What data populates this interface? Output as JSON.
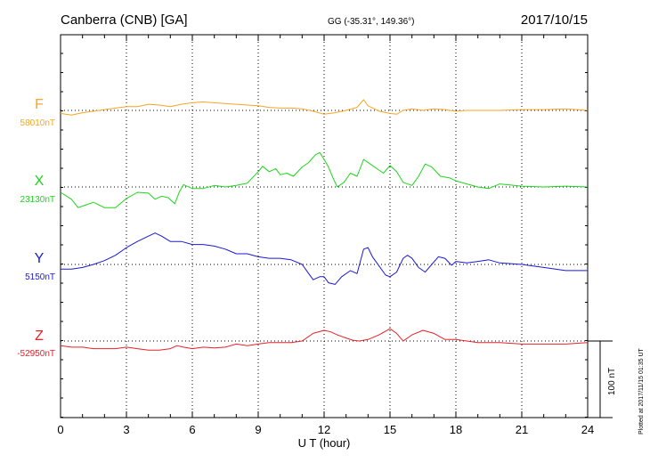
{
  "header": {
    "station": "Canberra (CNB)  [GA]",
    "coords": "GG (-35.31°, 149.36°)",
    "date": "2017/10/15"
  },
  "scale_label": "100 nT",
  "plotted_note": "Plotted at 2017/11/15 01:35 UT",
  "chart_data": {
    "type": "line",
    "xlabel": "U T (hour)",
    "xlim": [
      0,
      24
    ],
    "xticks": [
      "0",
      "3",
      "6",
      "9",
      "12",
      "15",
      "18",
      "21",
      "24"
    ],
    "scale_bar_nT": 100,
    "grid": "dotted vertical at each 3 h, dotted baseline per component",
    "series": [
      {
        "name": "F",
        "baseline_label": "58010nT",
        "color": "#f5a623",
        "units": "nT offset from baseline",
        "points": [
          [
            0,
            -4
          ],
          [
            0.5,
            -6
          ],
          [
            1,
            -3
          ],
          [
            1.5,
            -1
          ],
          [
            2,
            1
          ],
          [
            2.5,
            3
          ],
          [
            3,
            5
          ],
          [
            3.5,
            5
          ],
          [
            4,
            8
          ],
          [
            4.5,
            7
          ],
          [
            5,
            5
          ],
          [
            5.5,
            8
          ],
          [
            6,
            10
          ],
          [
            6.5,
            11
          ],
          [
            7,
            10
          ],
          [
            7.5,
            9
          ],
          [
            8,
            8
          ],
          [
            8.5,
            7
          ],
          [
            9,
            6
          ],
          [
            9.5,
            4
          ],
          [
            10,
            3
          ],
          [
            10.5,
            3
          ],
          [
            11,
            2
          ],
          [
            11.5,
            -1
          ],
          [
            12,
            -5
          ],
          [
            12.5,
            -3
          ],
          [
            13,
            0
          ],
          [
            13.5,
            4
          ],
          [
            13.8,
            14
          ],
          [
            14,
            6
          ],
          [
            14.3,
            2
          ],
          [
            14.5,
            -1
          ],
          [
            15,
            -4
          ],
          [
            15.3,
            -5
          ],
          [
            15.6,
            0
          ],
          [
            16,
            2
          ],
          [
            16.5,
            0
          ],
          [
            17,
            2
          ],
          [
            17.5,
            1
          ],
          [
            18,
            -1
          ],
          [
            18.5,
            0
          ],
          [
            19,
            0
          ],
          [
            19.5,
            0
          ],
          [
            20,
            0
          ],
          [
            21,
            1
          ],
          [
            22,
            1
          ],
          [
            23,
            2
          ],
          [
            24,
            0
          ]
        ]
      },
      {
        "name": "X",
        "baseline_label": "23130nT",
        "color": "#1bd51b",
        "units": "nT offset from baseline",
        "points": [
          [
            0,
            -7
          ],
          [
            0.5,
            -16
          ],
          [
            0.8,
            -27
          ],
          [
            1.1,
            -24
          ],
          [
            1.5,
            -20
          ],
          [
            2,
            -27
          ],
          [
            2.5,
            -27
          ],
          [
            3,
            -15
          ],
          [
            3.5,
            -7
          ],
          [
            4,
            -8
          ],
          [
            4.3,
            -16
          ],
          [
            4.6,
            -12
          ],
          [
            4.9,
            -14
          ],
          [
            5.2,
            -22
          ],
          [
            5.4,
            -7
          ],
          [
            5.6,
            3
          ],
          [
            6,
            -2
          ],
          [
            6.5,
            -2
          ],
          [
            7,
            2
          ],
          [
            7.5,
            0
          ],
          [
            8,
            2
          ],
          [
            8.5,
            5
          ],
          [
            9,
            20
          ],
          [
            9.2,
            27
          ],
          [
            9.5,
            20
          ],
          [
            9.8,
            24
          ],
          [
            10,
            16
          ],
          [
            10.3,
            18
          ],
          [
            10.6,
            14
          ],
          [
            11,
            26
          ],
          [
            11.3,
            32
          ],
          [
            11.6,
            42
          ],
          [
            11.8,
            45
          ],
          [
            12,
            36
          ],
          [
            12.2,
            26
          ],
          [
            12.4,
            12
          ],
          [
            12.6,
            0
          ],
          [
            12.9,
            6
          ],
          [
            13.2,
            18
          ],
          [
            13.5,
            14
          ],
          [
            13.8,
            36
          ],
          [
            14.1,
            30
          ],
          [
            14.4,
            24
          ],
          [
            14.7,
            18
          ],
          [
            15,
            28
          ],
          [
            15.3,
            20
          ],
          [
            15.6,
            6
          ],
          [
            16,
            2
          ],
          [
            16.3,
            14
          ],
          [
            16.6,
            30
          ],
          [
            16.9,
            26
          ],
          [
            17.3,
            14
          ],
          [
            17.7,
            12
          ],
          [
            18,
            8
          ],
          [
            18.5,
            4
          ],
          [
            19,
            0
          ],
          [
            19.5,
            -2
          ],
          [
            20,
            4
          ],
          [
            21,
            1
          ],
          [
            22,
            0
          ],
          [
            23,
            1
          ],
          [
            24,
            0
          ]
        ]
      },
      {
        "name": "Y",
        "baseline_label": "5150nT",
        "color": "#1a1ad6",
        "units": "nT offset from baseline",
        "points": [
          [
            0,
            -6
          ],
          [
            0.5,
            -6
          ],
          [
            1,
            -4
          ],
          [
            1.5,
            0
          ],
          [
            2,
            5
          ],
          [
            2.5,
            12
          ],
          [
            3,
            22
          ],
          [
            3.5,
            30
          ],
          [
            4,
            37
          ],
          [
            4.3,
            41
          ],
          [
            4.6,
            37
          ],
          [
            5,
            30
          ],
          [
            5.5,
            30
          ],
          [
            6,
            26
          ],
          [
            6.5,
            26
          ],
          [
            7,
            24
          ],
          [
            7.5,
            20
          ],
          [
            8,
            14
          ],
          [
            8.5,
            14
          ],
          [
            9,
            10
          ],
          [
            9.5,
            8
          ],
          [
            10,
            8
          ],
          [
            10.5,
            6
          ],
          [
            11,
            0
          ],
          [
            11.2,
            -8
          ],
          [
            11.5,
            -20
          ],
          [
            11.8,
            -16
          ],
          [
            12,
            -16
          ],
          [
            12.2,
            -24
          ],
          [
            12.5,
            -26
          ],
          [
            12.8,
            -16
          ],
          [
            13.2,
            -8
          ],
          [
            13.5,
            -12
          ],
          [
            13.8,
            20
          ],
          [
            14,
            22
          ],
          [
            14.2,
            10
          ],
          [
            14.5,
            -2
          ],
          [
            14.8,
            -14
          ],
          [
            15,
            -16
          ],
          [
            15.3,
            -10
          ],
          [
            15.6,
            8
          ],
          [
            15.8,
            12
          ],
          [
            16,
            8
          ],
          [
            16.3,
            -4
          ],
          [
            16.6,
            -10
          ],
          [
            16.9,
            0
          ],
          [
            17.2,
            10
          ],
          [
            17.5,
            8
          ],
          [
            17.8,
            -1
          ],
          [
            18,
            4
          ],
          [
            18.5,
            2
          ],
          [
            19,
            4
          ],
          [
            19.5,
            6
          ],
          [
            20,
            2
          ],
          [
            21,
            0
          ],
          [
            22,
            -4
          ],
          [
            23,
            -8
          ],
          [
            24,
            -8
          ]
        ]
      },
      {
        "name": "Z",
        "baseline_label": "-52950nT",
        "color": "#e8202a",
        "units": "nT offset from baseline",
        "points": [
          [
            0,
            -6
          ],
          [
            0.5,
            -8
          ],
          [
            1,
            -8
          ],
          [
            1.5,
            -10
          ],
          [
            2,
            -10
          ],
          [
            2.5,
            -10
          ],
          [
            3,
            -8
          ],
          [
            3.5,
            -10
          ],
          [
            4,
            -12
          ],
          [
            4.5,
            -12
          ],
          [
            5,
            -10
          ],
          [
            5.3,
            -6
          ],
          [
            5.6,
            -8
          ],
          [
            6,
            -10
          ],
          [
            6.5,
            -8
          ],
          [
            7,
            -9
          ],
          [
            7.5,
            -8
          ],
          [
            8,
            -4
          ],
          [
            8.5,
            -6
          ],
          [
            9,
            -4
          ],
          [
            9.5,
            -2
          ],
          [
            10,
            -2
          ],
          [
            10.5,
            -2
          ],
          [
            11,
            0
          ],
          [
            11.5,
            10
          ],
          [
            12,
            14
          ],
          [
            12.3,
            12
          ],
          [
            12.6,
            8
          ],
          [
            13,
            4
          ],
          [
            13.3,
            1
          ],
          [
            13.6,
            0
          ],
          [
            14,
            2
          ],
          [
            14.5,
            8
          ],
          [
            15,
            16
          ],
          [
            15.3,
            10
          ],
          [
            15.6,
            0
          ],
          [
            16,
            8
          ],
          [
            16.5,
            14
          ],
          [
            17,
            10
          ],
          [
            17.5,
            2
          ],
          [
            18,
            2
          ],
          [
            18.5,
            0
          ],
          [
            19,
            -2
          ],
          [
            20,
            -2
          ],
          [
            21,
            -4
          ],
          [
            22,
            -4
          ],
          [
            23,
            -4
          ],
          [
            24,
            -2
          ]
        ]
      }
    ]
  }
}
